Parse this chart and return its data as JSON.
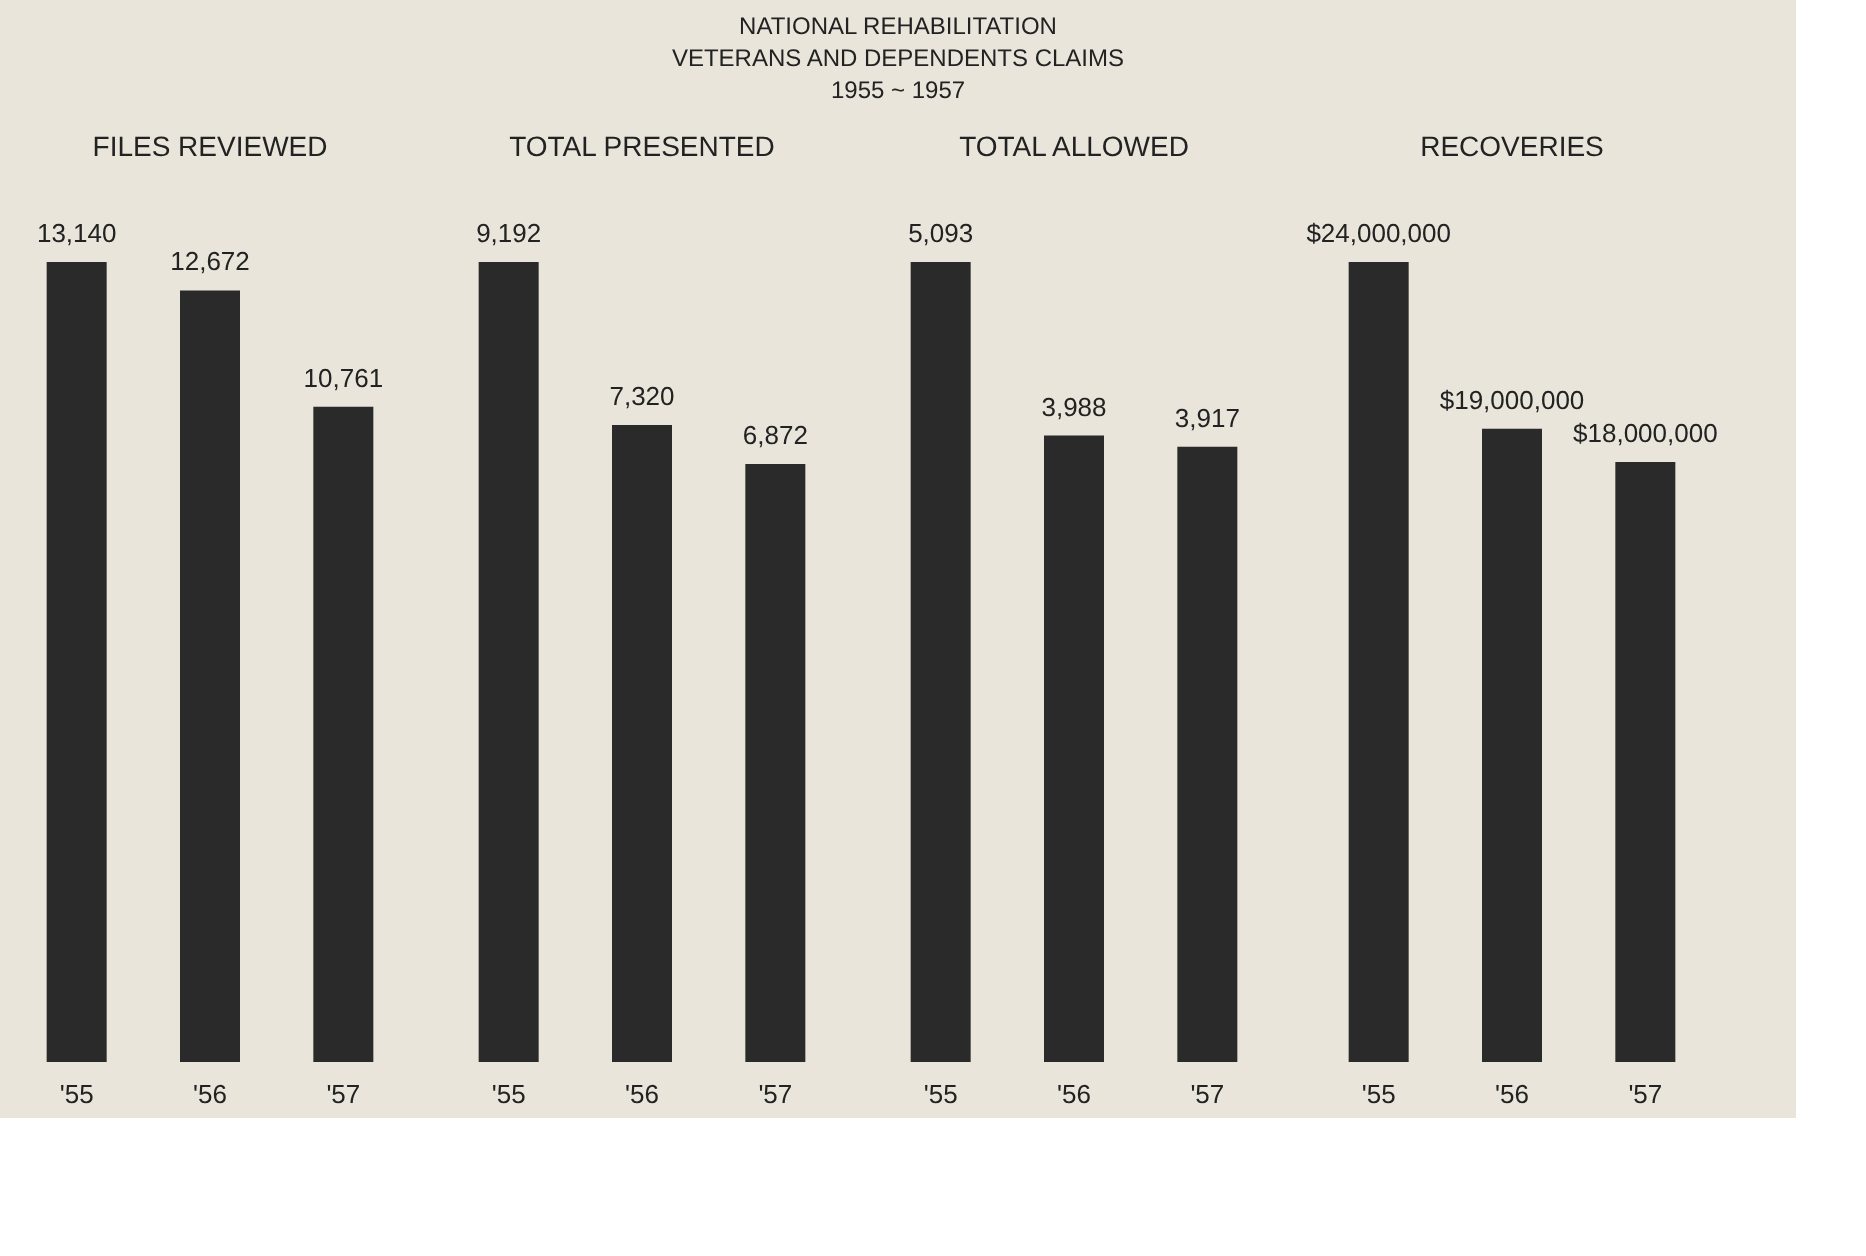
{
  "chart_data": [
    {
      "type": "other",
      "title": "NATIONAL REHABILITATION",
      "annotations": [
        "VETERANS AND DEPENDENTS CLAIMS",
        "1955 ~ 1957"
      ]
    },
    {
      "type": "bar",
      "title": "FILES REVIEWED",
      "categories": [
        "'55",
        "'56",
        "'57"
      ],
      "values": [
        13140,
        12672,
        10761
      ],
      "value_labels": [
        "13,140",
        "12,672",
        "10,761"
      ],
      "color": "#2a2a2a"
    },
    {
      "type": "bar",
      "title": "TOTAL PRESENTED",
      "categories": [
        "'55",
        "'56",
        "'57"
      ],
      "values": [
        9192,
        7320,
        6872
      ],
      "value_labels": [
        "9,192",
        "7,320",
        "6,872"
      ],
      "color": "#2a2a2a"
    },
    {
      "type": "bar",
      "title": "TOTAL ALLOWED",
      "categories": [
        "'55",
        "'56",
        "'57"
      ],
      "values": [
        5093,
        3988,
        3917
      ],
      "value_labels": [
        "5,093",
        "3,988",
        "3,917"
      ],
      "color": "#2a2a2a"
    },
    {
      "type": "bar",
      "title": "RECOVERIES",
      "categories": [
        "'55",
        "'56",
        "'57"
      ],
      "values": [
        24000000,
        19000000,
        18000000
      ],
      "value_labels": [
        "$24,000,000",
        "$19,000,000",
        "$18,000,000"
      ],
      "color": "#2a2a2a"
    }
  ]
}
